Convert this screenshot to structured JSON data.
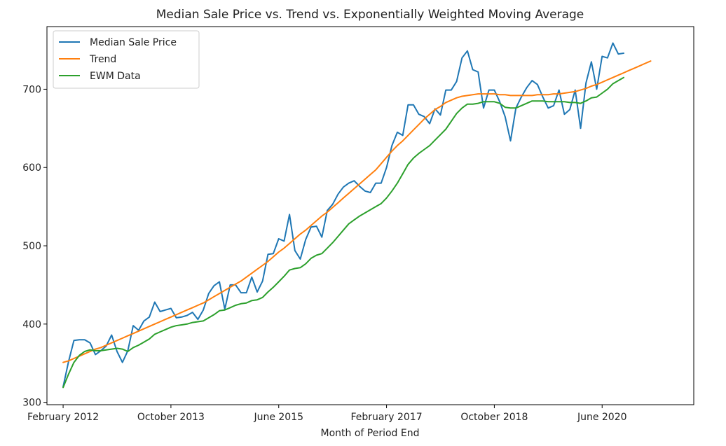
{
  "chart_data": {
    "type": "line",
    "title": "Median Sale Price vs. Trend vs. Exponentially Weighted Moving Average",
    "xlabel": "Month of Period End",
    "ylabel": "",
    "xlim": [
      -3,
      117
    ],
    "ylim": [
      297,
      780
    ],
    "x_tick_months": [
      0,
      20,
      40,
      60,
      80,
      100
    ],
    "x_tick_labels": [
      "February 2012",
      "October 2013",
      "June 2015",
      "February 2017",
      "October 2018",
      "June 2020"
    ],
    "y_ticks": [
      300,
      400,
      500,
      600,
      700
    ],
    "legend_position": "top-left",
    "grid": false,
    "series": [
      {
        "name": "Median Sale Price",
        "color": "#1f77b4",
        "values": [
          320,
          352,
          379,
          380,
          380,
          376,
          361,
          366,
          372,
          386,
          365,
          351,
          366,
          398,
          392,
          404,
          409,
          428,
          416,
          418,
          420,
          408,
          409,
          411,
          415,
          406,
          418,
          439,
          449,
          454,
          419,
          450,
          450,
          440,
          440,
          460,
          441,
          455,
          489,
          490,
          509,
          506,
          540,
          494,
          483,
          508,
          524,
          525,
          511,
          545,
          553,
          566,
          575,
          580,
          583,
          576,
          570,
          568,
          580,
          580,
          600,
          628,
          645,
          641,
          680,
          680,
          668,
          665,
          656,
          675,
          667,
          699,
          699,
          710,
          740,
          749,
          725,
          722,
          676,
          699,
          699,
          684,
          665,
          634,
          676,
          690,
          702,
          711,
          706,
          690,
          676,
          679,
          699,
          668,
          674,
          699,
          650,
          708,
          735,
          700,
          742,
          740,
          759,
          745,
          746
        ],
        "values_note": ""
      },
      {
        "name": "Trend",
        "color": "#ff7f0e",
        "values": [
          351,
          353,
          356,
          359,
          362,
          365,
          368,
          370,
          373,
          376,
          379,
          382,
          385,
          388,
          391,
          394,
          397,
          400,
          403,
          406,
          409,
          412,
          415,
          418,
          421,
          424,
          427,
          431,
          435,
          439,
          443,
          447,
          451,
          455,
          460,
          465,
          470,
          475,
          480,
          486,
          492,
          497,
          503,
          509,
          515,
          520,
          526,
          532,
          538,
          543,
          549,
          555,
          561,
          567,
          573,
          579,
          585,
          591,
          597,
          605,
          613,
          621,
          628,
          634,
          641,
          648,
          655,
          662,
          668,
          674,
          678,
          683,
          686,
          689,
          691,
          692,
          693,
          694,
          694,
          694,
          694,
          693,
          693,
          692,
          692,
          692,
          692,
          692,
          693,
          693,
          693,
          694,
          694,
          695,
          696,
          697,
          699,
          701,
          704,
          706,
          709,
          712,
          715,
          718,
          721,
          724,
          727,
          730,
          733,
          736
        ]
      },
      {
        "name": "EWM Data",
        "color": "#2ca02c",
        "values": [
          319,
          336,
          351,
          360,
          365,
          367,
          366,
          366,
          367,
          368,
          369,
          368,
          365,
          370,
          373,
          377,
          381,
          387,
          390,
          393,
          396,
          398,
          399,
          400,
          402,
          403,
          404,
          408,
          412,
          417,
          418,
          421,
          424,
          426,
          427,
          430,
          431,
          434,
          441,
          447,
          454,
          461,
          469,
          471,
          472,
          477,
          484,
          488,
          490,
          497,
          504,
          512,
          520,
          528,
          533,
          538,
          542,
          546,
          550,
          554,
          561,
          570,
          580,
          592,
          604,
          612,
          618,
          623,
          628,
          635,
          642,
          649,
          659,
          669,
          676,
          681,
          681,
          682,
          684,
          684,
          684,
          682,
          677,
          676,
          676,
          679,
          682,
          685,
          685,
          685,
          684,
          684,
          684,
          684,
          683,
          683,
          682,
          685,
          689,
          690,
          695,
          700,
          707,
          711,
          715
        ]
      }
    ]
  }
}
